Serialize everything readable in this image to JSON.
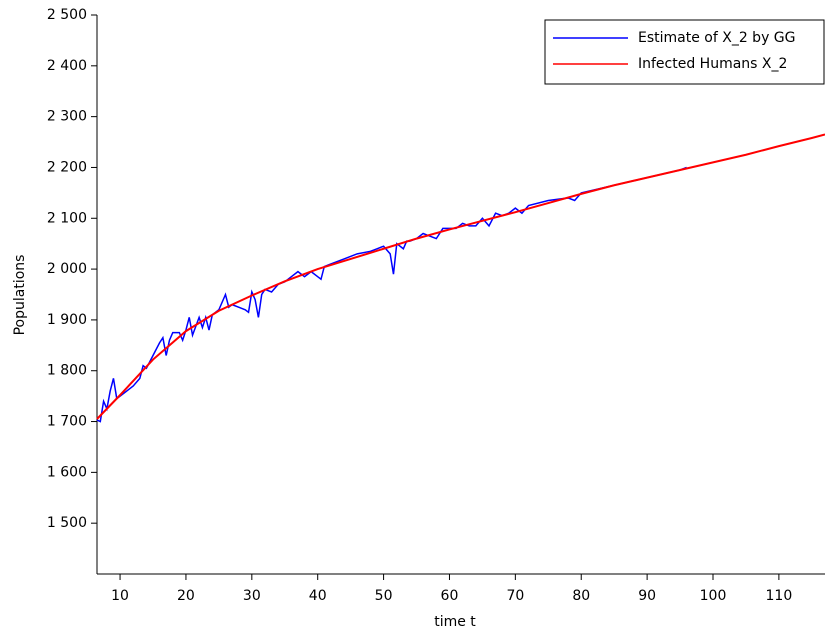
{
  "chart_data": {
    "type": "line",
    "xlabel": "time t",
    "ylabel": "Populations",
    "xlim": [
      6.5,
      117
    ],
    "ylim": [
      1400,
      2500
    ],
    "xticks": [
      10,
      20,
      30,
      40,
      50,
      60,
      70,
      80,
      90,
      100,
      110
    ],
    "yticks": [
      {
        "value": 1500,
        "label": "1 500"
      },
      {
        "value": 1600,
        "label": "1 600"
      },
      {
        "value": 1700,
        "label": "1 700"
      },
      {
        "value": 1800,
        "label": "1 800"
      },
      {
        "value": 1900,
        "label": "1 900"
      },
      {
        "value": 2000,
        "label": "2 000"
      },
      {
        "value": 2100,
        "label": "2 100"
      },
      {
        "value": 2200,
        "label": "2 200"
      },
      {
        "value": 2300,
        "label": "2 300"
      },
      {
        "value": 2400,
        "label": "2 400"
      },
      {
        "value": 2500,
        "label": "2 500"
      }
    ],
    "legend": "upper right",
    "series": [
      {
        "name": "Estimate of X_2 by GG",
        "color": "#0000ff",
        "x": [
          6.5,
          7,
          7.5,
          8,
          8.5,
          9,
          9.5,
          10,
          12,
          13,
          13.5,
          14,
          15,
          16,
          16.5,
          17,
          17.5,
          18,
          19,
          19.5,
          20,
          20.5,
          21,
          22,
          22.5,
          23,
          23.5,
          24,
          25,
          26,
          26.5,
          27,
          28,
          29,
          29.5,
          30,
          30.5,
          31,
          31.5,
          32,
          33,
          34,
          35,
          36,
          37,
          38,
          39,
          40,
          40.5,
          41,
          42,
          44,
          46,
          48,
          49,
          50,
          51,
          51.5,
          52,
          53,
          53.5,
          54,
          55,
          56,
          57,
          58,
          59,
          60,
          61,
          62,
          63,
          64,
          65,
          66,
          67,
          68,
          69,
          70,
          71,
          72,
          75,
          78,
          79,
          80,
          90,
          95,
          96
        ],
        "values": [
          1703,
          1700,
          1740,
          1725,
          1760,
          1785,
          1745,
          1750,
          1770,
          1785,
          1810,
          1805,
          1830,
          1855,
          1865,
          1830,
          1860,
          1875,
          1875,
          1860,
          1880,
          1905,
          1870,
          1905,
          1885,
          1905,
          1880,
          1910,
          1920,
          1950,
          1925,
          1930,
          1925,
          1920,
          1915,
          1955,
          1940,
          1905,
          1950,
          1960,
          1955,
          1970,
          1975,
          1985,
          1995,
          1985,
          1995,
          1985,
          1980,
          2005,
          2010,
          2020,
          2030,
          2035,
          2040,
          2045,
          2030,
          1990,
          2050,
          2040,
          2055,
          2055,
          2060,
          2070,
          2065,
          2060,
          2080,
          2080,
          2080,
          2090,
          2085,
          2085,
          2100,
          2085,
          2110,
          2105,
          2110,
          2120,
          2110,
          2125,
          2135,
          2140,
          2135,
          2150,
          2180,
          2195,
          2200
        ]
      },
      {
        "name": "Infected Humans X_2",
        "color": "#ff0000",
        "x": [
          6.5,
          10,
          15,
          20,
          25,
          30,
          35,
          40,
          45,
          50,
          55,
          60,
          65,
          70,
          75,
          80,
          85,
          90,
          95,
          100,
          105,
          110,
          115,
          117
        ],
        "values": [
          1705,
          1752,
          1822,
          1878,
          1918,
          1948,
          1976,
          2000,
          2020,
          2040,
          2060,
          2078,
          2095,
          2112,
          2130,
          2148,
          2165,
          2180,
          2195,
          2210,
          2225,
          2242,
          2258,
          2265
        ]
      }
    ]
  }
}
